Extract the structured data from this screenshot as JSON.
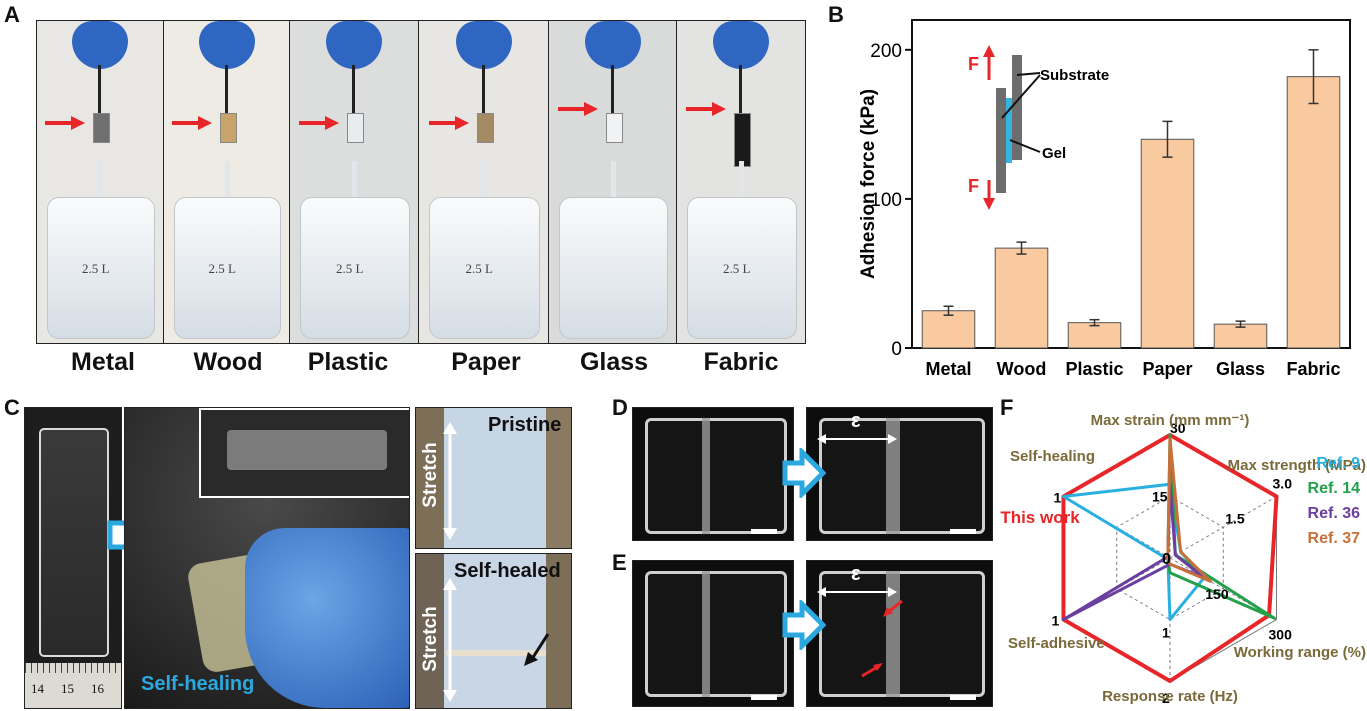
{
  "panels": {
    "a": "A",
    "b": "B",
    "c": "C",
    "d": "D",
    "e": "E",
    "f": "F"
  },
  "panel_a": {
    "materials": [
      "Metal",
      "Wood",
      "Plastic",
      "Paper",
      "Glass",
      "Fabric"
    ],
    "jug_label": "2.5 L"
  },
  "panel_b": {
    "inset": {
      "force_label": "F",
      "substrate": "Substrate",
      "gel": "Gel"
    }
  },
  "panel_c": {
    "pristine": "Pristine",
    "self_healed": "Self-healed",
    "stretch": "Stretch",
    "self_healing": "Self-healing",
    "ruler": [
      "14",
      "15",
      "16"
    ]
  },
  "panel_de": {
    "strain_symbol": "ε"
  },
  "chart_data": [
    {
      "type": "bar",
      "title": "",
      "xlabel": "",
      "ylabel": "Adhesion force (kPa)",
      "categories": [
        "Metal",
        "Wood",
        "Plastic",
        "Paper",
        "Glass",
        "Fabric"
      ],
      "values": [
        25,
        67,
        17,
        140,
        16,
        182
      ],
      "errors": [
        3,
        4,
        2,
        12,
        2,
        18
      ],
      "ylim": [
        0,
        220
      ],
      "yticks": [
        0,
        100,
        200
      ],
      "color": "#f9c9a0"
    },
    {
      "type": "radar",
      "axes": [
        {
          "name": "Max strain (mm mm⁻¹)",
          "ticks": [
            "15",
            "30"
          ],
          "max": 30
        },
        {
          "name": "Max strength (MPa)",
          "ticks": [
            "1.5",
            "3.0"
          ],
          "max": 3.0
        },
        {
          "name": "Working range (%)",
          "ticks": [
            "150",
            "300"
          ],
          "max": 300
        },
        {
          "name": "Response rate (Hz)",
          "ticks": [
            "1",
            "2"
          ],
          "max": 2
        },
        {
          "name": "Self-adhesive",
          "ticks": [
            "1"
          ],
          "max": 1
        },
        {
          "name": "Self-healing",
          "ticks": [
            "1"
          ],
          "max": 1
        }
      ],
      "center_label": "0",
      "series": [
        {
          "name": "This work",
          "color": "#e8262a",
          "values": [
            1,
            1,
            0.93,
            1,
            1,
            1
          ]
        },
        {
          "name": "Ref. 9",
          "color": "#29b0e0",
          "values": [
            0.6,
            0.1,
            0.32,
            0.5,
            0,
            1
          ]
        },
        {
          "name": "Ref. 14",
          "color": "#22a04a",
          "values": [
            1,
            0.05,
            0.98,
            0.12,
            0,
            0
          ]
        },
        {
          "name": "Ref. 36",
          "color": "#6a3fa0",
          "values": [
            0.6,
            0.05,
            0.32,
            0.05,
            1,
            0
          ]
        },
        {
          "name": "Ref. 37",
          "color": "#c8703a",
          "values": [
            0.97,
            0.1,
            0.38,
            0.05,
            0,
            0
          ]
        }
      ]
    }
  ]
}
